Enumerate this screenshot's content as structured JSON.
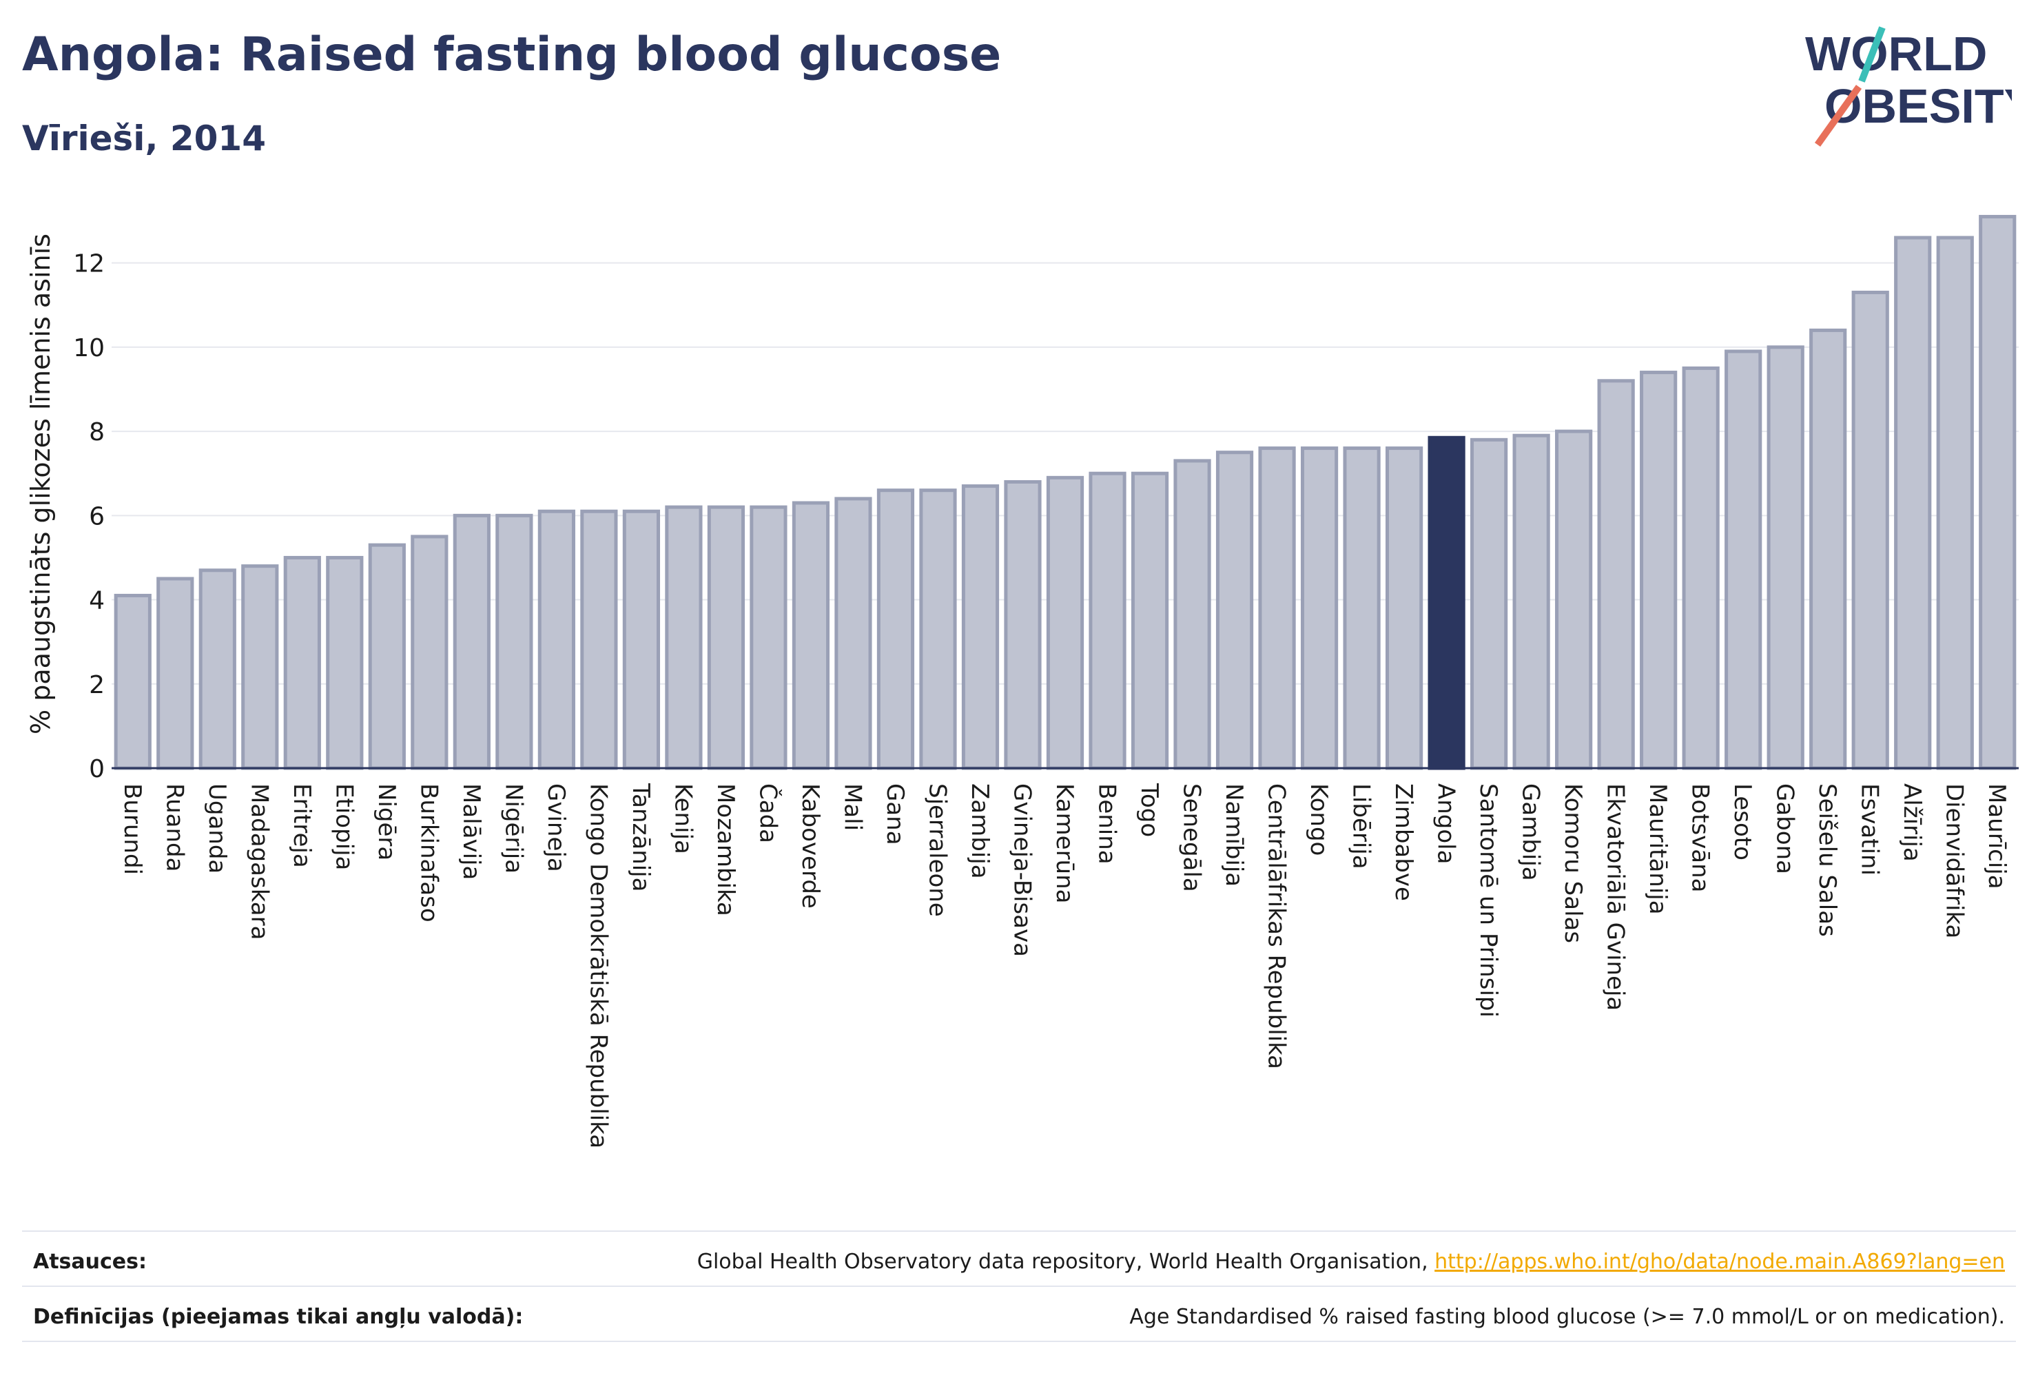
{
  "header": {
    "title": "Angola: Raised fasting blood glucose",
    "subtitle": "Vīrieši, 2014"
  },
  "logo": {
    "line1": "WORLD",
    "line2": "OBESITY",
    "colors": {
      "text": "#2b365f",
      "slash_top": "#3bbfb8",
      "slash_bottom": "#e8705a"
    }
  },
  "colors": {
    "bar_fill": "#bfc3d1",
    "bar_stroke": "#9aa0b6",
    "highlight_fill": "#2b365f",
    "axis_text": "#1b1b1b",
    "grid": "#e6e8ee"
  },
  "chart_data": {
    "type": "bar",
    "title": "",
    "xlabel": "",
    "ylabel": "% paaugstināts glikozes līmenis asinīs",
    "ylim": [
      0,
      13.5
    ],
    "yticks": [
      0,
      2,
      4,
      6,
      8,
      10,
      12
    ],
    "grid": true,
    "highlight": "Angola",
    "categories": [
      "Burundi",
      "Ruanda",
      "Uganda",
      "Madagaskara",
      "Eritreja",
      "Etiopija",
      "Nigēra",
      "Burkinafaso",
      "Malāvija",
      "Nigērija",
      "Gvineja",
      "Kongo Demokrātiskā Republika",
      "Tanzānija",
      "Kenija",
      "Mozambika",
      "Čada",
      "Kaboverde",
      "Mali",
      "Gana",
      "Sjerraleone",
      "Zambija",
      "Gvineja-Bisava",
      "Kamerūna",
      "Benina",
      "Togo",
      "Senegāla",
      "Namībija",
      "Centrālāfrikas Republika",
      "Kongo",
      "Libērija",
      "Zimbabve",
      "Angola",
      "Santomē un Prinsipi",
      "Gambija",
      "Komoru Salas",
      "Ekvatoriālā Gvineja",
      "Mauritānija",
      "Botsvāna",
      "Lesoto",
      "Gabona",
      "Seišelu Salas",
      "Esvatini",
      "Alžīrija",
      "Dienvidāfrika",
      "Maurīcija"
    ],
    "values": [
      4.1,
      4.5,
      4.7,
      4.8,
      5.0,
      5.0,
      5.3,
      5.5,
      6.0,
      6.0,
      6.1,
      6.1,
      6.1,
      6.2,
      6.2,
      6.2,
      6.3,
      6.4,
      6.6,
      6.6,
      6.7,
      6.8,
      6.9,
      7.0,
      7.0,
      7.3,
      7.5,
      7.6,
      7.6,
      7.6,
      7.6,
      7.85,
      7.8,
      7.9,
      8.0,
      9.2,
      9.4,
      9.5,
      9.9,
      10.0,
      10.4,
      11.3,
      12.6,
      12.6,
      13.1
    ]
  },
  "footer": {
    "sources_label": "Atsauces:",
    "sources_text": "Global Health Observatory data repository, World Health Organisation, ",
    "sources_link": "http://apps.who.int/gho/data/node.main.A869?lang=en",
    "definitions_label": "Definīcijas (pieejamas tikai angļu valodā):",
    "definitions_text": "Age Standardised % raised fasting blood glucose (>= 7.0 mmol/L or on medication)."
  }
}
